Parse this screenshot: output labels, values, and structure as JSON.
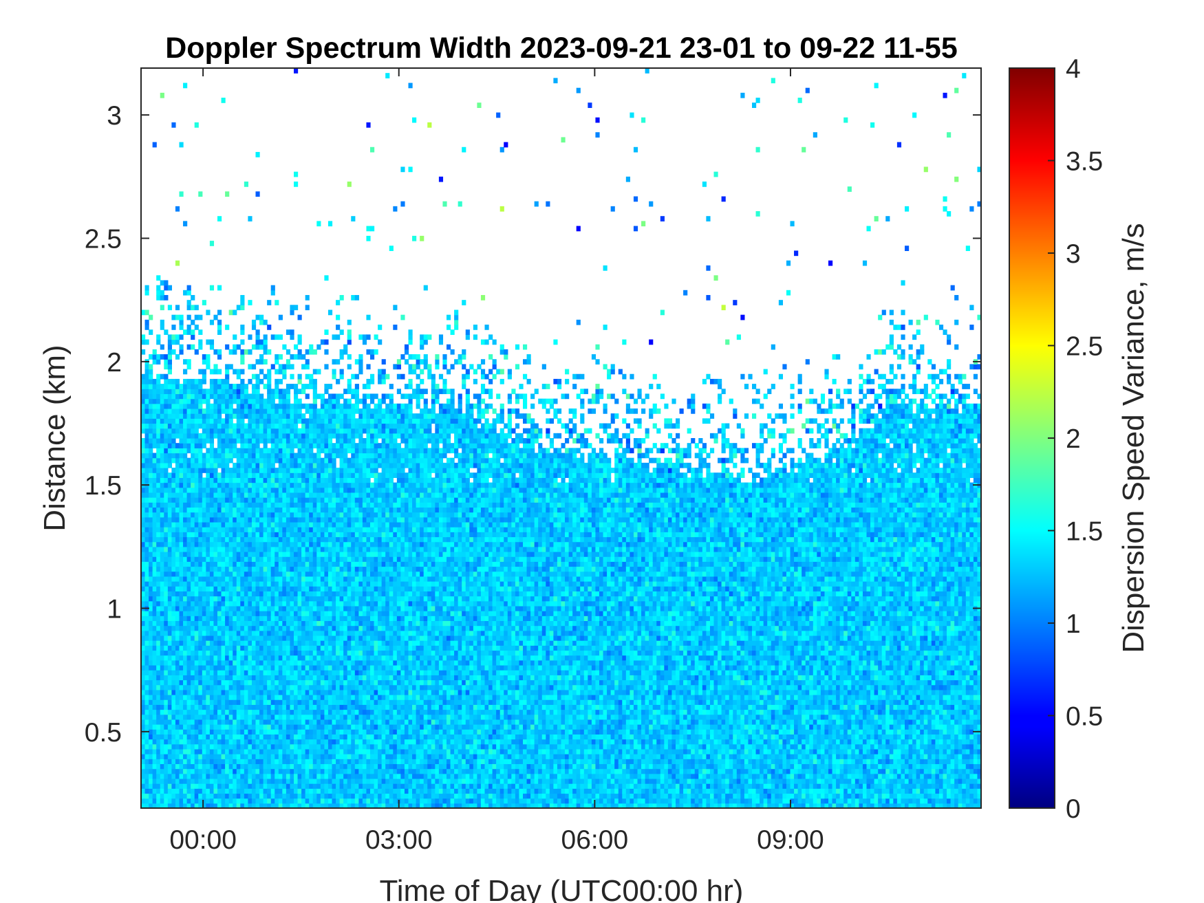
{
  "chart_data": {
    "type": "heatmap",
    "title": "Doppler Spectrum Width 2023-09-21 23-01 to 09-22 11-55",
    "xlabel": "Time of Day (UTC00:00 hr)",
    "ylabel": "Distance (km)",
    "x_ticks": [
      {
        "value": 0,
        "label": "00:00"
      },
      {
        "value": 3,
        "label": "03:00"
      },
      {
        "value": 6,
        "label": "06:00"
      },
      {
        "value": 9,
        "label": "09:00"
      }
    ],
    "y_ticks": [
      {
        "value": 0.5,
        "label": "0.5"
      },
      {
        "value": 1.0,
        "label": "1"
      },
      {
        "value": 1.5,
        "label": "1.5"
      },
      {
        "value": 2.0,
        "label": "2"
      },
      {
        "value": 2.5,
        "label": "2.5"
      },
      {
        "value": 3.0,
        "label": "3"
      }
    ],
    "xlim": [
      -0.95,
      11.92
    ],
    "ylim": [
      0.19,
      3.19
    ],
    "colorbar": {
      "label": "Dispersion Speed Variance, m/s",
      "range": [
        0,
        4
      ],
      "colormap": "jet",
      "ticks": [
        {
          "value": 0,
          "label": "0"
        },
        {
          "value": 0.5,
          "label": "0.5"
        },
        {
          "value": 1,
          "label": "1"
        },
        {
          "value": 1.5,
          "label": "1.5"
        },
        {
          "value": 2,
          "label": "2"
        },
        {
          "value": 2.5,
          "label": "2.5"
        },
        {
          "value": 3,
          "label": "3"
        },
        {
          "value": 3.5,
          "label": "3.5"
        },
        {
          "value": 4,
          "label": "4"
        }
      ]
    },
    "field": {
      "typical_value": 1.3,
      "spread": 0.25,
      "no_data_color": "#ffffff",
      "signal_top_km": [
        {
          "t": -0.95,
          "h": 1.95
        },
        {
          "t": 0.4,
          "h": 1.9
        },
        {
          "t": 1.5,
          "h": 1.85
        },
        {
          "t": 2.5,
          "h": 1.83
        },
        {
          "t": 3.6,
          "h": 1.83
        },
        {
          "t": 4.5,
          "h": 1.75
        },
        {
          "t": 5.2,
          "h": 1.63
        },
        {
          "t": 5.7,
          "h": 1.62
        },
        {
          "t": 6.5,
          "h": 1.6
        },
        {
          "t": 7.5,
          "h": 1.55
        },
        {
          "t": 8.3,
          "h": 1.52
        },
        {
          "t": 9.5,
          "h": 1.6
        },
        {
          "t": 10.5,
          "h": 1.8
        },
        {
          "t": 11.92,
          "h": 1.82
        }
      ]
    }
  }
}
